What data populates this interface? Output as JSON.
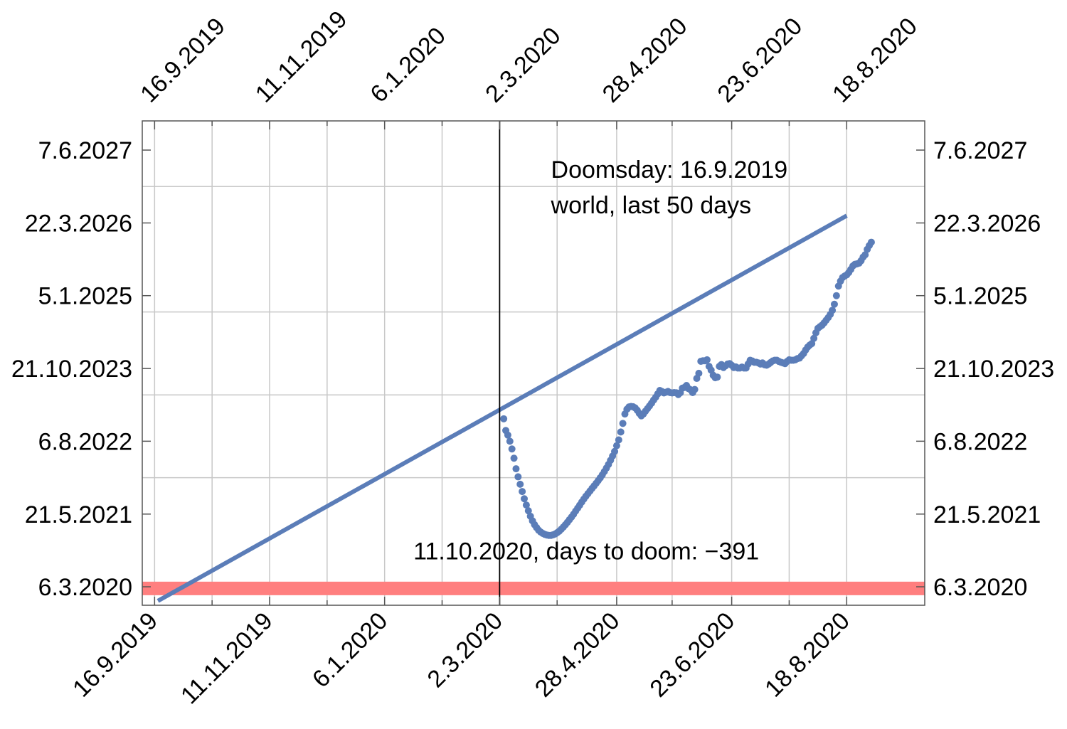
{
  "chart_data": {
    "type": "scatter",
    "title": "",
    "xlabel": "",
    "ylabel": "",
    "x_axis": {
      "type": "date",
      "range": [
        "2019-09-10",
        "2020-09-25"
      ],
      "ticks": [
        "2019-09-16",
        "2019-11-11",
        "2020-01-06",
        "2020-03-02",
        "2020-04-28",
        "2020-06-23",
        "2020-08-18"
      ],
      "tick_labels": [
        "16.9.2019",
        "11.11.2019",
        "6.1.2020",
        "2.3.2020",
        "28.4.2020",
        "23.6.2020",
        "18.8.2020"
      ],
      "gridlines": [
        "2019-10-14",
        "2019-12-09",
        "2020-02-03",
        "2020-03-30",
        "2020-05-25",
        "2020-07-21"
      ]
    },
    "y_axis": {
      "type": "date",
      "range": [
        "2019-11-15",
        "2027-12-01"
      ],
      "ticks": [
        "2020-03-06",
        "2021-05-21",
        "2022-08-06",
        "2023-10-21",
        "2025-01-05",
        "2026-03-22",
        "2027-06-07"
      ],
      "tick_labels": [
        "6.3.2020",
        "21.5.2021",
        "6.8.2022",
        "21.10.2023",
        "5.1.2025",
        "22.3.2026",
        "7.6.2027"
      ],
      "gridlines": [
        "2021-12-28",
        "2023-05-14",
        "2024-09-28",
        "2026-10-29"
      ]
    },
    "grid": true,
    "marker_color": "#5b7db8",
    "series": [
      {
        "kind": "points",
        "points": [
          {
            "x": "2020-03-04",
            "y": "2022-12-20"
          },
          {
            "x": "2020-03-05",
            "y": "2022-10-10"
          },
          {
            "x": "2020-03-06",
            "y": "2022-09-12"
          },
          {
            "x": "2020-03-07",
            "y": "2022-08-06"
          },
          {
            "x": "2020-03-08",
            "y": "2022-06-20"
          },
          {
            "x": "2020-03-09",
            "y": "2022-04-25"
          },
          {
            "x": "2020-03-10",
            "y": "2022-02-20"
          },
          {
            "x": "2020-03-11",
            "y": "2022-01-02"
          },
          {
            "x": "2020-03-12",
            "y": "2021-11-18"
          },
          {
            "x": "2020-03-13",
            "y": "2021-10-05"
          },
          {
            "x": "2020-03-14",
            "y": "2021-08-22"
          },
          {
            "x": "2020-03-15",
            "y": "2021-07-15"
          },
          {
            "x": "2020-03-16",
            "y": "2021-06-10"
          },
          {
            "x": "2020-03-17",
            "y": "2021-05-08"
          },
          {
            "x": "2020-03-18",
            "y": "2021-04-10"
          },
          {
            "x": "2020-03-19",
            "y": "2021-03-18"
          },
          {
            "x": "2020-03-20",
            "y": "2021-02-28"
          },
          {
            "x": "2020-03-21",
            "y": "2021-02-12"
          },
          {
            "x": "2020-03-22",
            "y": "2021-02-01"
          },
          {
            "x": "2020-03-23",
            "y": "2021-01-24"
          },
          {
            "x": "2020-03-24",
            "y": "2021-01-18"
          },
          {
            "x": "2020-03-25",
            "y": "2021-01-14"
          },
          {
            "x": "2020-03-26",
            "y": "2021-01-12"
          },
          {
            "x": "2020-03-27",
            "y": "2021-01-12"
          },
          {
            "x": "2020-03-28",
            "y": "2021-01-15"
          },
          {
            "x": "2020-03-29",
            "y": "2021-01-20"
          },
          {
            "x": "2020-03-30",
            "y": "2021-01-28"
          },
          {
            "x": "2020-03-31",
            "y": "2021-02-06"
          },
          {
            "x": "2020-04-01",
            "y": "2021-02-18"
          },
          {
            "x": "2020-04-02",
            "y": "2021-03-03"
          },
          {
            "x": "2020-04-03",
            "y": "2021-03-17"
          },
          {
            "x": "2020-04-04",
            "y": "2021-04-01"
          },
          {
            "x": "2020-04-05",
            "y": "2021-04-17"
          },
          {
            "x": "2020-04-06",
            "y": "2021-05-03"
          },
          {
            "x": "2020-04-07",
            "y": "2021-05-20"
          },
          {
            "x": "2020-04-08",
            "y": "2021-06-08"
          },
          {
            "x": "2020-04-09",
            "y": "2021-06-26"
          },
          {
            "x": "2020-04-10",
            "y": "2021-07-14"
          },
          {
            "x": "2020-04-11",
            "y": "2021-08-02"
          },
          {
            "x": "2020-04-12",
            "y": "2021-08-20"
          },
          {
            "x": "2020-04-13",
            "y": "2021-09-06"
          },
          {
            "x": "2020-04-14",
            "y": "2021-09-22"
          },
          {
            "x": "2020-04-15",
            "y": "2021-10-08"
          },
          {
            "x": "2020-04-16",
            "y": "2021-10-24"
          },
          {
            "x": "2020-04-17",
            "y": "2021-11-08"
          },
          {
            "x": "2020-04-18",
            "y": "2021-11-24"
          },
          {
            "x": "2020-04-19",
            "y": "2021-12-10"
          },
          {
            "x": "2020-04-20",
            "y": "2021-12-27"
          },
          {
            "x": "2020-04-21",
            "y": "2022-01-14"
          },
          {
            "x": "2020-04-22",
            "y": "2022-02-03"
          },
          {
            "x": "2020-04-23",
            "y": "2022-02-24"
          },
          {
            "x": "2020-04-24",
            "y": "2022-03-18"
          },
          {
            "x": "2020-04-25",
            "y": "2022-04-12"
          },
          {
            "x": "2020-04-26",
            "y": "2022-05-08"
          },
          {
            "x": "2020-04-27",
            "y": "2022-06-05"
          },
          {
            "x": "2020-04-28",
            "y": "2022-07-10"
          },
          {
            "x": "2020-04-29",
            "y": "2022-08-14"
          },
          {
            "x": "2020-04-30",
            "y": "2022-10-01"
          },
          {
            "x": "2020-05-01",
            "y": "2022-11-22"
          },
          {
            "x": "2020-05-02",
            "y": "2023-01-18"
          },
          {
            "x": "2020-05-03",
            "y": "2023-02-16"
          },
          {
            "x": "2020-05-04",
            "y": "2023-03-02"
          },
          {
            "x": "2020-05-05",
            "y": "2023-03-05"
          },
          {
            "x": "2020-05-06",
            "y": "2023-03-03"
          },
          {
            "x": "2020-05-07",
            "y": "2023-02-24"
          },
          {
            "x": "2020-05-08",
            "y": "2023-02-10"
          },
          {
            "x": "2020-05-09",
            "y": "2023-01-22"
          },
          {
            "x": "2020-05-10",
            "y": "2023-01-07"
          },
          {
            "x": "2020-05-11",
            "y": "2023-01-18"
          },
          {
            "x": "2020-05-12",
            "y": "2023-02-04"
          },
          {
            "x": "2020-05-13",
            "y": "2023-02-20"
          },
          {
            "x": "2020-05-14",
            "y": "2023-03-08"
          },
          {
            "x": "2020-05-15",
            "y": "2023-03-25"
          },
          {
            "x": "2020-05-16",
            "y": "2023-04-13"
          },
          {
            "x": "2020-05-17",
            "y": "2023-04-30"
          },
          {
            "x": "2020-05-18",
            "y": "2023-05-20"
          },
          {
            "x": "2020-05-19",
            "y": "2023-06-10"
          },
          {
            "x": "2020-05-20",
            "y": "2023-06-04"
          },
          {
            "x": "2020-05-21",
            "y": "2023-05-26"
          },
          {
            "x": "2020-05-22",
            "y": "2023-05-30"
          },
          {
            "x": "2020-05-23",
            "y": "2023-06-04"
          },
          {
            "x": "2020-05-24",
            "y": "2023-05-28"
          },
          {
            "x": "2020-05-25",
            "y": "2023-05-26"
          },
          {
            "x": "2020-05-26",
            "y": "2023-05-28"
          },
          {
            "x": "2020-05-27",
            "y": "2023-05-27"
          },
          {
            "x": "2020-05-28",
            "y": "2023-05-16"
          },
          {
            "x": "2020-05-29",
            "y": "2023-05-27"
          },
          {
            "x": "2020-05-30",
            "y": "2023-06-24"
          },
          {
            "x": "2020-05-31",
            "y": "2023-06-28"
          },
          {
            "x": "2020-06-01",
            "y": "2023-07-10"
          },
          {
            "x": "2020-06-02",
            "y": "2023-06-21"
          },
          {
            "x": "2020-06-03",
            "y": "2023-06-14"
          },
          {
            "x": "2020-06-04",
            "y": "2023-05-28"
          },
          {
            "x": "2020-06-05",
            "y": "2023-06-16"
          },
          {
            "x": "2020-06-06",
            "y": "2023-08-22"
          },
          {
            "x": "2020-06-07",
            "y": "2023-09-22"
          },
          {
            "x": "2020-06-08",
            "y": "2023-12-04"
          },
          {
            "x": "2020-06-09",
            "y": "2023-12-07"
          },
          {
            "x": "2020-06-10",
            "y": "2023-12-07"
          },
          {
            "x": "2020-06-11",
            "y": "2023-12-13"
          },
          {
            "x": "2020-06-12",
            "y": "2023-11-03"
          },
          {
            "x": "2020-06-13",
            "y": "2023-10-11"
          },
          {
            "x": "2020-06-14",
            "y": "2023-09-10"
          },
          {
            "x": "2020-06-15",
            "y": "2023-08-26"
          },
          {
            "x": "2020-06-16",
            "y": "2023-08-30"
          },
          {
            "x": "2020-06-17",
            "y": "2023-11-03"
          },
          {
            "x": "2020-06-18",
            "y": "2023-11-14"
          },
          {
            "x": "2020-06-19",
            "y": "2023-10-27"
          },
          {
            "x": "2020-06-20",
            "y": "2023-11-06"
          },
          {
            "x": "2020-06-21",
            "y": "2023-11-17"
          },
          {
            "x": "2020-06-22",
            "y": "2023-11-20"
          },
          {
            "x": "2020-06-23",
            "y": "2023-11-10"
          },
          {
            "x": "2020-06-24",
            "y": "2023-10-27"
          },
          {
            "x": "2020-06-25",
            "y": "2023-10-31"
          },
          {
            "x": "2020-06-26",
            "y": "2023-10-24"
          },
          {
            "x": "2020-06-27",
            "y": "2023-10-24"
          },
          {
            "x": "2020-06-28",
            "y": "2023-10-30"
          },
          {
            "x": "2020-06-29",
            "y": "2023-10-24"
          },
          {
            "x": "2020-06-30",
            "y": "2023-10-24"
          },
          {
            "x": "2020-07-01",
            "y": "2023-11-17"
          },
          {
            "x": "2020-07-02",
            "y": "2023-12-10"
          },
          {
            "x": "2020-07-03",
            "y": "2023-12-06"
          },
          {
            "x": "2020-07-04",
            "y": "2023-11-28"
          },
          {
            "x": "2020-07-05",
            "y": "2023-11-28"
          },
          {
            "x": "2020-07-06",
            "y": "2023-11-24"
          },
          {
            "x": "2020-07-07",
            "y": "2023-11-17"
          },
          {
            "x": "2020-07-08",
            "y": "2023-11-24"
          },
          {
            "x": "2020-07-09",
            "y": "2023-11-13"
          },
          {
            "x": "2020-07-10",
            "y": "2023-11-10"
          },
          {
            "x": "2020-07-11",
            "y": "2023-11-17"
          },
          {
            "x": "2020-07-12",
            "y": "2023-11-27"
          },
          {
            "x": "2020-07-13",
            "y": "2023-12-06"
          },
          {
            "x": "2020-07-14",
            "y": "2023-12-10"
          },
          {
            "x": "2020-07-15",
            "y": "2023-12-10"
          },
          {
            "x": "2020-07-16",
            "y": "2023-12-03"
          },
          {
            "x": "2020-07-17",
            "y": "2023-11-28"
          },
          {
            "x": "2020-07-18",
            "y": "2023-11-24"
          },
          {
            "x": "2020-07-19",
            "y": "2023-11-20"
          },
          {
            "x": "2020-07-20",
            "y": "2023-12-03"
          },
          {
            "x": "2020-07-21",
            "y": "2023-12-13"
          },
          {
            "x": "2020-07-22",
            "y": "2023-12-10"
          },
          {
            "x": "2020-07-23",
            "y": "2023-12-10"
          },
          {
            "x": "2020-07-24",
            "y": "2023-12-13"
          },
          {
            "x": "2020-07-25",
            "y": "2023-12-20"
          },
          {
            "x": "2020-07-26",
            "y": "2023-12-23"
          },
          {
            "x": "2020-07-27",
            "y": "2024-01-06"
          },
          {
            "x": "2020-07-28",
            "y": "2024-01-20"
          },
          {
            "x": "2020-07-29",
            "y": "2024-02-10"
          },
          {
            "x": "2020-07-30",
            "y": "2024-02-28"
          },
          {
            "x": "2020-07-31",
            "y": "2024-03-11"
          },
          {
            "x": "2020-08-01",
            "y": "2024-03-20"
          },
          {
            "x": "2020-08-02",
            "y": "2024-04-21"
          },
          {
            "x": "2020-08-03",
            "y": "2024-05-25"
          },
          {
            "x": "2020-08-04",
            "y": "2024-06-21"
          },
          {
            "x": "2020-08-05",
            "y": "2024-07-01"
          },
          {
            "x": "2020-08-06",
            "y": "2024-07-10"
          },
          {
            "x": "2020-08-07",
            "y": "2024-07-24"
          },
          {
            "x": "2020-08-08",
            "y": "2024-08-09"
          },
          {
            "x": "2020-08-09",
            "y": "2024-08-25"
          },
          {
            "x": "2020-08-10",
            "y": "2024-09-13"
          },
          {
            "x": "2020-08-11",
            "y": "2024-10-08"
          },
          {
            "x": "2020-08-12",
            "y": "2024-11-14"
          },
          {
            "x": "2020-08-13",
            "y": "2025-01-05"
          },
          {
            "x": "2020-08-14",
            "y": "2025-03-04"
          },
          {
            "x": "2020-08-15",
            "y": "2025-04-03"
          },
          {
            "x": "2020-08-16",
            "y": "2025-04-25"
          },
          {
            "x": "2020-08-17",
            "y": "2025-05-04"
          },
          {
            "x": "2020-08-18",
            "y": "2025-05-11"
          },
          {
            "x": "2020-08-19",
            "y": "2025-05-25"
          },
          {
            "x": "2020-08-20",
            "y": "2025-06-13"
          },
          {
            "x": "2020-08-21",
            "y": "2025-07-04"
          },
          {
            "x": "2020-08-22",
            "y": "2025-07-14"
          },
          {
            "x": "2020-08-23",
            "y": "2025-07-17"
          },
          {
            "x": "2020-08-24",
            "y": "2025-07-21"
          },
          {
            "x": "2020-08-25",
            "y": "2025-08-05"
          },
          {
            "x": "2020-08-26",
            "y": "2025-08-27"
          },
          {
            "x": "2020-08-27",
            "y": "2025-09-10"
          },
          {
            "x": "2020-08-28",
            "y": "2025-10-13"
          },
          {
            "x": "2020-08-29",
            "y": "2025-11-05"
          },
          {
            "x": "2020-08-30",
            "y": "2025-11-25"
          }
        ]
      },
      {
        "kind": "line",
        "color": "#5b7db8",
        "points": [
          {
            "x": "2019-09-16",
            "y": "2019-11-30"
          },
          {
            "x": "2020-08-18",
            "y": "2026-05-05"
          }
        ]
      }
    ],
    "annotations": {
      "vertical_line_x": "2020-03-02",
      "band": {
        "y_from": "2020-01-15",
        "y_to": "2020-04-06",
        "color": "#ff7f7f"
      },
      "band_label": "11.10.2020, days to doom: −391",
      "band_label_anchor": {
        "x": "2020-01-20",
        "y": "2020-08-20"
      },
      "info_lines": [
        "Doomsday: 16.9.2019",
        "world, last 50 days"
      ],
      "info_anchor": {
        "x": "2020-03-27",
        "y": "2026-12-20"
      }
    }
  }
}
